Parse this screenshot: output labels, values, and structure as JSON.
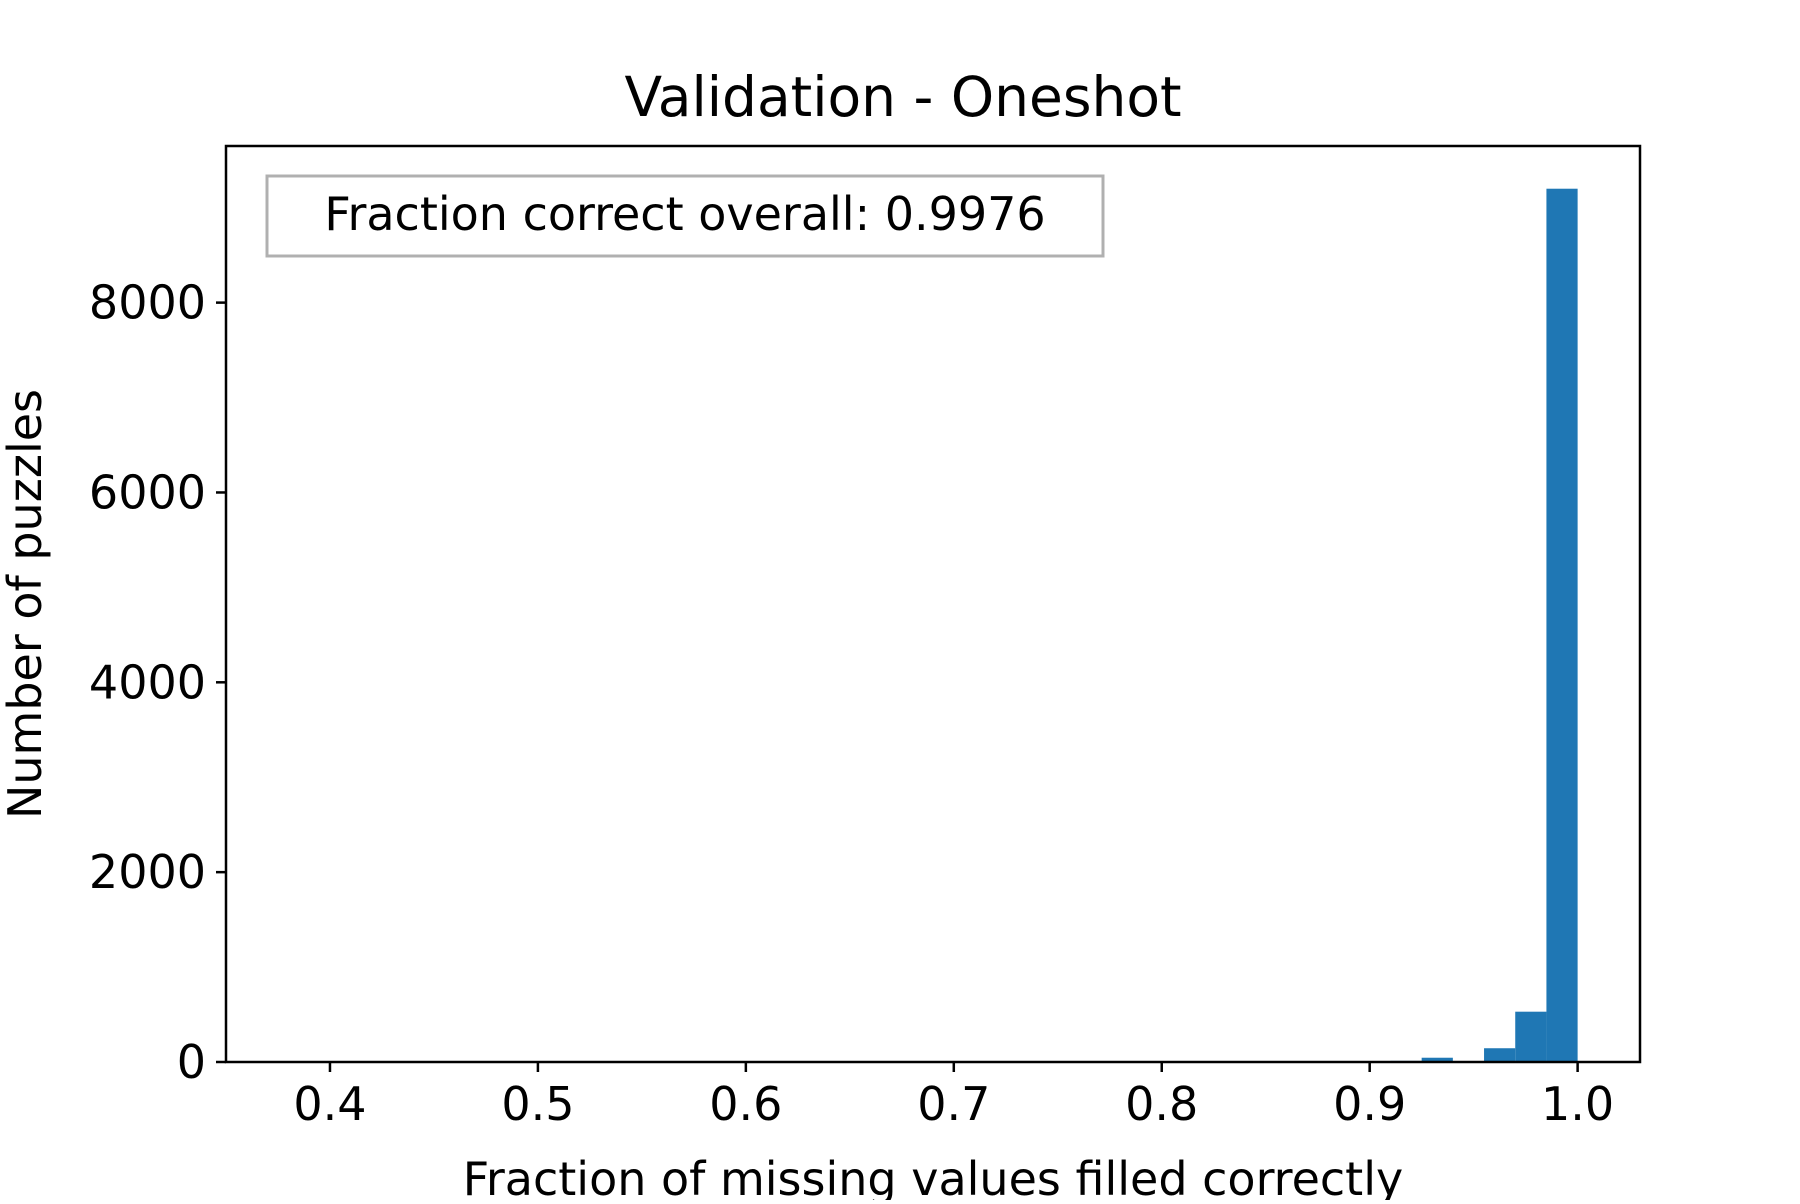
{
  "chart_data": {
    "type": "bar",
    "title": "Validation - Oneshot",
    "xlabel": "Fraction of missing values filled correctly",
    "ylabel": "Number of puzzles",
    "annotation": "Fraction correct overall: 0.9976",
    "xlim": [
      0.35,
      1.03
    ],
    "ylim": [
      0,
      9650
    ],
    "xticks": [
      0.4,
      0.5,
      0.6,
      0.7,
      0.8,
      0.9,
      1.0
    ],
    "xtick_labels": [
      "0.4",
      "0.5",
      "0.6",
      "0.7",
      "0.8",
      "0.9",
      "1.0"
    ],
    "yticks": [
      0,
      2000,
      4000,
      6000,
      8000
    ],
    "ytick_labels": [
      "0",
      "2000",
      "4000",
      "6000",
      "8000"
    ],
    "bin_width": 0.015,
    "bars": [
      {
        "x_start": 0.91,
        "x_end": 0.925,
        "value": 12
      },
      {
        "x_start": 0.925,
        "x_end": 0.94,
        "value": 45
      },
      {
        "x_start": 0.955,
        "x_end": 0.97,
        "value": 145
      },
      {
        "x_start": 0.97,
        "x_end": 0.985,
        "value": 530
      },
      {
        "x_start": 0.985,
        "x_end": 1.0,
        "value": 9200
      }
    ],
    "bar_color": "#1f77b4",
    "grid": false,
    "legend": "none"
  }
}
